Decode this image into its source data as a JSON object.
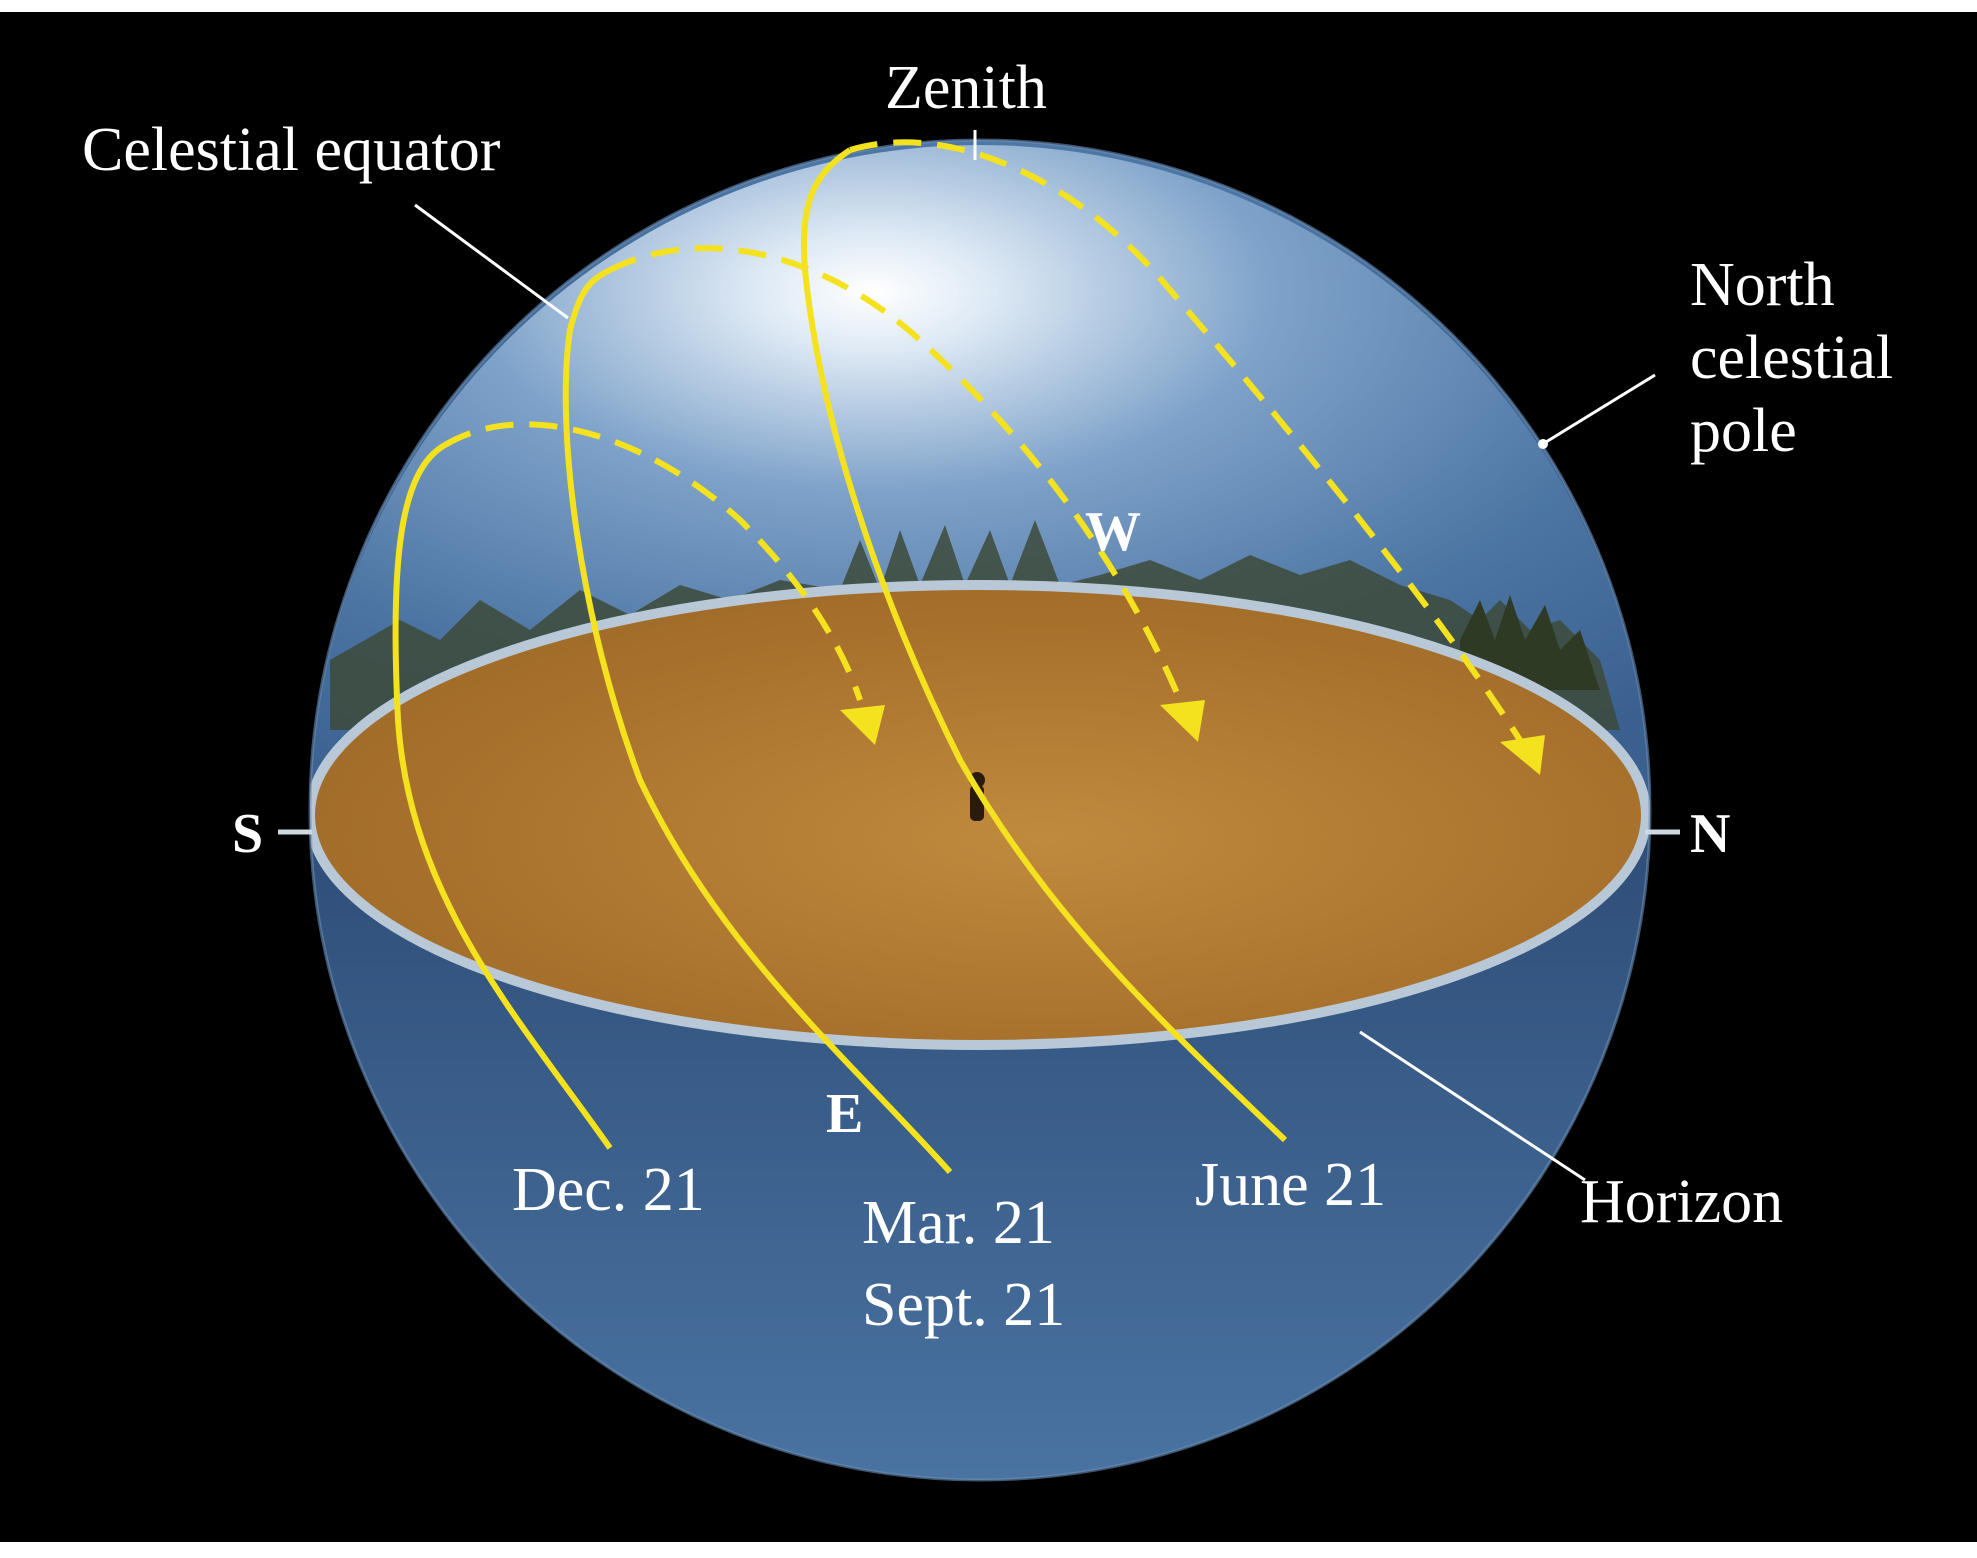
{
  "labels": {
    "zenith": "Zenith",
    "celestial_equator": "Celestial equator",
    "north_celestial_pole": [
      "North",
      "celestial",
      "pole"
    ],
    "horizon": "Horizon",
    "south": "S",
    "north": "N",
    "east": "E",
    "west": "W",
    "dec21": "Dec. 21",
    "mar21": "Mar. 21",
    "sept21": "Sept. 21",
    "june21": "June 21"
  },
  "colors": {
    "background": "#000000",
    "sky_light": "#dfeaf5",
    "sky_mid": "#5f87b3",
    "sky_dark": "#2f4f78",
    "ground": "#a8722a",
    "ground_light": "#c08a3e",
    "horizon_rim": "#b9c8d6",
    "sun_path": "#f5e21e"
  }
}
